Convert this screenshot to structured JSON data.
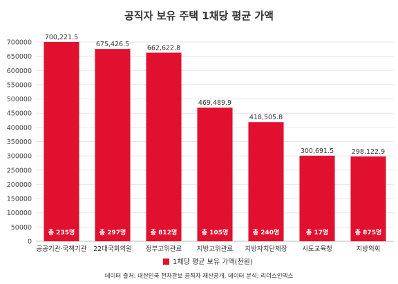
{
  "chart_data": {
    "type": "bar",
    "title": "공직자 보유 주택 1채당 평균 가액",
    "categories": [
      "공공기관·국책기관",
      "22대국회의원",
      "정부고위관료",
      "지방고위관료",
      "지방자치단체장",
      "시도교육청",
      "지방의회"
    ],
    "values": [
      700221.5,
      675426.5,
      662622.8,
      469489.9,
      418505.8,
      300691.5,
      298122.9
    ],
    "value_labels": [
      "700,221.5",
      "675,426.5",
      "662,622.8",
      "469,489.9",
      "418,505.8",
      "300,691.5",
      "298,122.9"
    ],
    "bar_labels": [
      "총 235명",
      "총 297명",
      "총 812명",
      "총 105명",
      "총 240명",
      "총 17명",
      "총 875명"
    ],
    "series": [
      {
        "name": "1채당 평균 보유 가액(천원)",
        "values": [
          700221.5,
          675426.5,
          662622.8,
          469489.9,
          418505.8,
          300691.5,
          298122.9
        ]
      }
    ],
    "ylim": [
      0,
      700000
    ],
    "yticks": [
      0,
      50000,
      100000,
      150000,
      200000,
      250000,
      300000,
      350000,
      400000,
      450000,
      500000,
      550000,
      600000,
      650000,
      700000
    ],
    "grid": true,
    "legend": "bottom",
    "bar_color": "#e0102e",
    "source": "데이터 출처: 대한민국 전자관보 공직자 재산공개, 데이터 분석: 리더스인덱스"
  }
}
